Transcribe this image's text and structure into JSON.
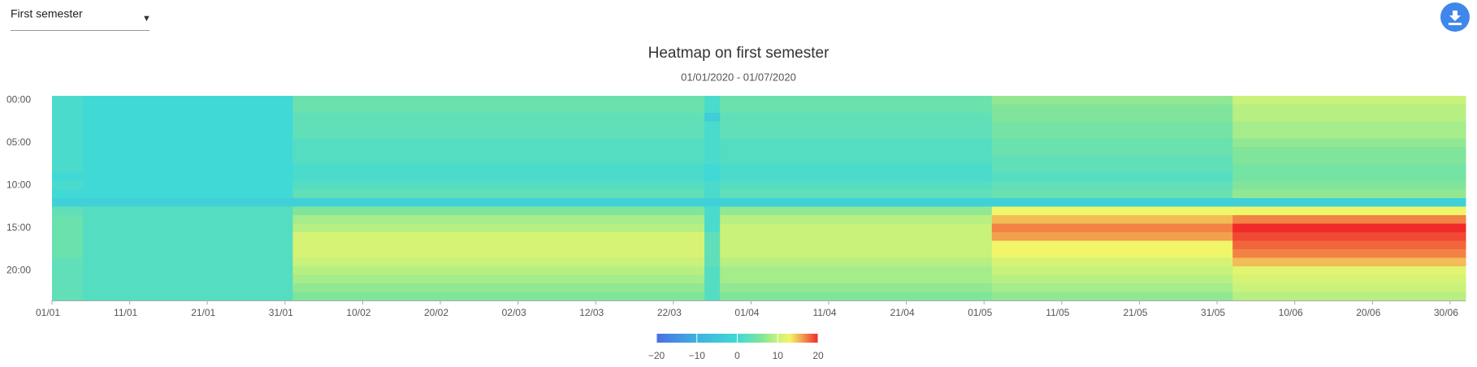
{
  "dropdown": {
    "label": "First semester"
  },
  "chart_data": {
    "type": "heatmap",
    "title": "Heatmap on first semester",
    "subtitle": "01/01/2020 - 01/07/2020",
    "x": [
      0,
      4,
      31,
      84,
      86,
      121,
      152,
      182
    ],
    "xlim": [
      0,
      182
    ],
    "xticks": [
      {
        "value": 0,
        "label": "01/01"
      },
      {
        "value": 10,
        "label": "11/01"
      },
      {
        "value": 20,
        "label": "21/01"
      },
      {
        "value": 30,
        "label": "31/01"
      },
      {
        "value": 40,
        "label": "10/02"
      },
      {
        "value": 50,
        "label": "20/02"
      },
      {
        "value": 60,
        "label": "02/03"
      },
      {
        "value": 70,
        "label": "12/03"
      },
      {
        "value": 80,
        "label": "22/03"
      },
      {
        "value": 90,
        "label": "01/04"
      },
      {
        "value": 100,
        "label": "11/04"
      },
      {
        "value": 110,
        "label": "21/04"
      },
      {
        "value": 120,
        "label": "01/05"
      },
      {
        "value": 130,
        "label": "11/05"
      },
      {
        "value": 140,
        "label": "21/05"
      },
      {
        "value": 150,
        "label": "31/05"
      },
      {
        "value": 160,
        "label": "10/06"
      },
      {
        "value": 170,
        "label": "20/06"
      },
      {
        "value": 180,
        "label": "30/06"
      }
    ],
    "y": [
      "00:00",
      null,
      null,
      null,
      null,
      "05:00",
      null,
      null,
      null,
      null,
      "10:00",
      null,
      null,
      null,
      null,
      "15:00",
      null,
      null,
      null,
      null,
      "20:00",
      null,
      null,
      null
    ],
    "z": [
      [
        1,
        0,
        4,
        1,
        4,
        7,
        10
      ],
      [
        1,
        0,
        4,
        1,
        4,
        6,
        9
      ],
      [
        1,
        0,
        3,
        -3,
        3,
        6,
        9
      ],
      [
        1,
        0,
        3,
        1,
        3,
        5,
        8
      ],
      [
        1,
        0,
        3,
        1,
        3,
        5,
        8
      ],
      [
        1,
        0,
        2,
        1,
        2,
        4,
        7
      ],
      [
        1,
        0,
        2,
        1,
        2,
        4,
        6
      ],
      [
        1,
        0,
        2,
        1,
        2,
        3,
        6
      ],
      [
        1,
        0,
        1,
        0,
        1,
        3,
        5
      ],
      [
        0,
        0,
        1,
        0,
        1,
        2,
        5
      ],
      [
        1,
        0,
        2,
        1,
        2,
        3,
        6
      ],
      [
        0,
        0,
        3,
        1,
        3,
        4,
        7
      ],
      [
        -2,
        -2,
        -2,
        -2,
        -2,
        -2,
        -2
      ],
      [
        3,
        2,
        6,
        1,
        7,
        13,
        13
      ],
      [
        4,
        2,
        8,
        1,
        9,
        15,
        17
      ],
      [
        4,
        2,
        9,
        1,
        10,
        17,
        20
      ],
      [
        4,
        2,
        11,
        3,
        10,
        16,
        19
      ],
      [
        4,
        2,
        11,
        3,
        10,
        13,
        18
      ],
      [
        4,
        2,
        11,
        3,
        10,
        13,
        17
      ],
      [
        3,
        2,
        10,
        3,
        9,
        11,
        15
      ],
      [
        3,
        2,
        9,
        2,
        8,
        10,
        12
      ],
      [
        3,
        2,
        8,
        2,
        8,
        9,
        11
      ],
      [
        3,
        2,
        7,
        2,
        7,
        8,
        10
      ],
      [
        3,
        2,
        6,
        2,
        6,
        7,
        9
      ]
    ],
    "zlim": [
      -20,
      20
    ],
    "zticks": [
      {
        "value": -20,
        "label": "−20"
      },
      {
        "value": -10,
        "label": "−10"
      },
      0,
      10,
      20
    ],
    "colorscale": [
      [
        -20,
        "#4a6fe3"
      ],
      [
        -10,
        "#3fb2de"
      ],
      [
        0,
        "#40d9d6"
      ],
      [
        6,
        "#80e59a"
      ],
      [
        10,
        "#c9f27b"
      ],
      [
        13,
        "#f0f56a"
      ],
      [
        16,
        "#f3a04e"
      ],
      [
        20,
        "#f02a2a"
      ]
    ]
  }
}
